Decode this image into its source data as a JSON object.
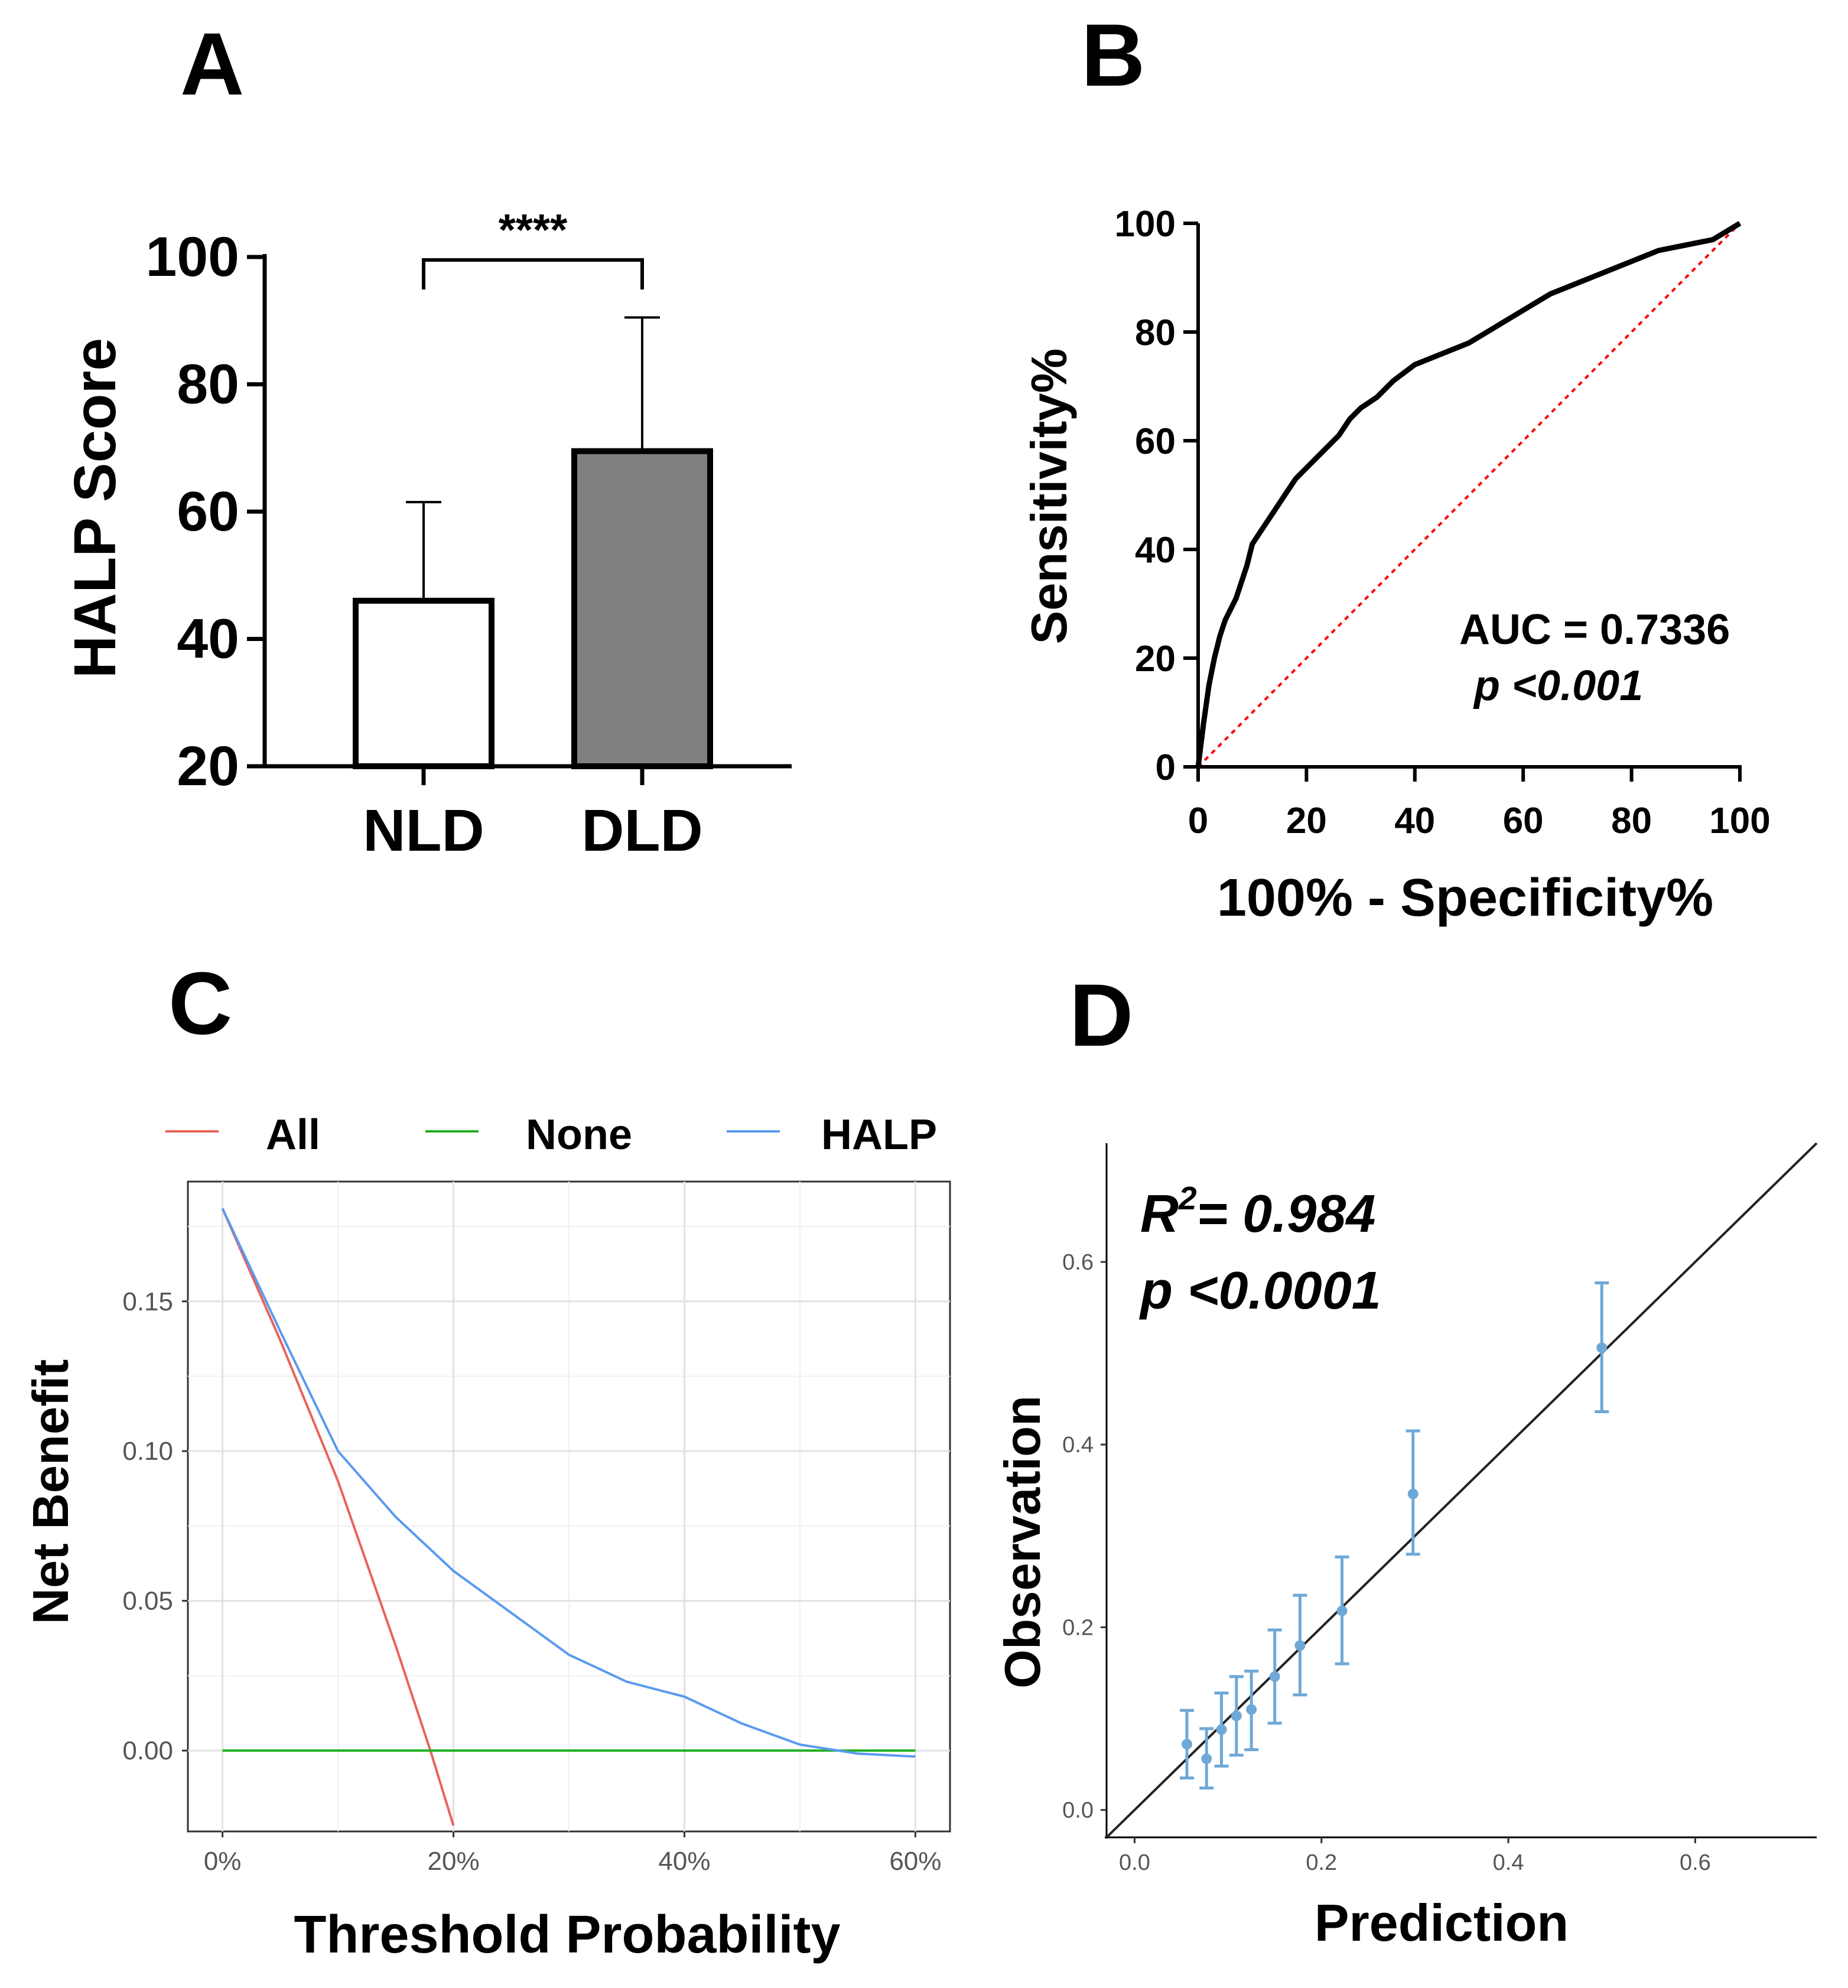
{
  "chart_data": [
    {
      "panel": "A",
      "type": "bar",
      "ylabel": "HALP Score",
      "ylim": [
        20,
        100
      ],
      "yticks": [
        "20",
        "40",
        "60",
        "80",
        "100"
      ],
      "categories": [
        "NLD",
        "DLD"
      ],
      "values": [
        46,
        69.5
      ],
      "error_upper": [
        61.5,
        90.5
      ],
      "bar_colors": [
        "#ffffff",
        "#808080"
      ],
      "significance": "****"
    },
    {
      "panel": "B",
      "type": "line",
      "xlabel": "100% - Specificity%",
      "ylabel": "Sensitivity%",
      "xlim": [
        0,
        100
      ],
      "ylim": [
        0,
        100
      ],
      "xticks": [
        "0",
        "20",
        "40",
        "60",
        "80",
        "100"
      ],
      "yticks": [
        "0",
        "20",
        "40",
        "60",
        "80",
        "100"
      ],
      "roc_x": [
        0,
        1,
        2,
        3,
        4,
        5,
        7,
        9,
        10,
        12,
        14,
        16,
        18,
        20,
        23,
        26,
        28,
        30,
        33,
        36,
        40,
        45,
        50,
        55,
        60,
        65,
        70,
        75,
        80,
        85,
        90,
        95,
        100
      ],
      "roc_y": [
        0,
        8,
        15,
        20,
        24,
        27,
        31,
        37,
        41,
        44,
        47,
        50,
        53,
        55,
        58,
        61,
        64,
        66,
        68,
        71,
        74,
        76,
        78,
        81,
        84,
        87,
        89,
        91,
        93,
        95,
        96,
        97,
        100
      ],
      "auc_text": "AUC = 0.7336",
      "p_text": "p <0.001",
      "reference_color": "#ff0000"
    },
    {
      "panel": "C",
      "type": "line",
      "xlabel": "Threshold Probability",
      "ylabel": "Net Benefit",
      "xlim": [
        -0.03,
        0.63
      ],
      "ylim": [
        -0.027,
        0.19
      ],
      "xticks": [
        0,
        0.2,
        0.4,
        0.6
      ],
      "xtick_labels": [
        "0%",
        "20%",
        "40%",
        "60%"
      ],
      "yticks": [
        0,
        0.05,
        0.1,
        0.15
      ],
      "ytick_labels": [
        "0.00",
        "0.05",
        "0.10",
        "0.15"
      ],
      "series": [
        {
          "name": "All",
          "color": "#e8635a",
          "x": [
            0,
            0.05,
            0.1,
            0.15,
            0.18,
            0.2
          ],
          "y": [
            0.181,
            0.137,
            0.09,
            0.035,
            0.0,
            -0.025
          ]
        },
        {
          "name": "None",
          "color": "#22b022",
          "x": [
            0,
            0.6
          ],
          "y": [
            0,
            0
          ]
        },
        {
          "name": "HALP",
          "color": "#5a9af0",
          "x": [
            0,
            0.05,
            0.1,
            0.15,
            0.2,
            0.25,
            0.3,
            0.35,
            0.4,
            0.45,
            0.5,
            0.55,
            0.6
          ],
          "y": [
            0.181,
            0.14,
            0.1,
            0.078,
            0.06,
            0.046,
            0.032,
            0.023,
            0.018,
            0.009,
            0.002,
            -0.001,
            -0.002
          ]
        }
      ]
    },
    {
      "panel": "D",
      "type": "scatter",
      "xlabel": "Prediction",
      "ylabel": "Observation",
      "xlim": [
        -0.03,
        0.73
      ],
      "ylim": [
        -0.03,
        0.73
      ],
      "xticks": [
        0,
        0.2,
        0.4,
        0.6
      ],
      "xtick_labels": [
        "0.0",
        "0.2",
        "0.4",
        "0.6"
      ],
      "yticks": [
        0,
        0.2,
        0.4,
        0.6
      ],
      "ytick_labels": [
        "0.0",
        "0.2",
        "0.4",
        "0.6"
      ],
      "points": [
        {
          "x": 0.056,
          "y": 0.072,
          "low": 0.035,
          "high": 0.109
        },
        {
          "x": 0.077,
          "y": 0.056,
          "low": 0.024,
          "high": 0.089
        },
        {
          "x": 0.093,
          "y": 0.088,
          "low": 0.048,
          "high": 0.128
        },
        {
          "x": 0.109,
          "y": 0.103,
          "low": 0.06,
          "high": 0.146
        },
        {
          "x": 0.125,
          "y": 0.11,
          "low": 0.066,
          "high": 0.152
        },
        {
          "x": 0.15,
          "y": 0.146,
          "low": 0.095,
          "high": 0.197
        },
        {
          "x": 0.177,
          "y": 0.18,
          "low": 0.126,
          "high": 0.235
        },
        {
          "x": 0.222,
          "y": 0.218,
          "low": 0.16,
          "high": 0.277
        },
        {
          "x": 0.298,
          "y": 0.346,
          "low": 0.28,
          "high": 0.415
        },
        {
          "x": 0.5,
          "y": 0.506,
          "low": 0.436,
          "high": 0.577
        }
      ],
      "point_color": "#6fa8d6",
      "r2_prefix": "R",
      "r2_sup": "2",
      "r2_value": "= 0.984",
      "p_text": "p <0.0001"
    }
  ],
  "panel_labels": {
    "a": "A",
    "b": "B",
    "c": "C",
    "d": "D"
  }
}
